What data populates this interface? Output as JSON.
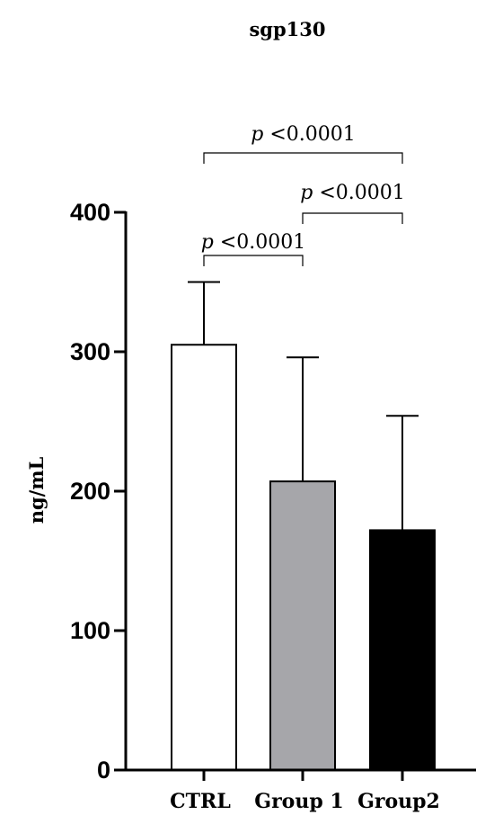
{
  "chart_data": {
    "type": "bar",
    "title": "sgp130",
    "xlabel": "",
    "ylabel": "ng/mL",
    "ylim": [
      0,
      400
    ],
    "yticks": [
      0,
      100,
      200,
      300,
      400
    ],
    "categories": [
      "CTRL",
      "Group 1",
      "Group2"
    ],
    "values": [
      305,
      207,
      172
    ],
    "error_upper": [
      350,
      296,
      254
    ],
    "colors": [
      "#ffffff",
      "#a6a6aa",
      "#000000"
    ],
    "comparisons": [
      {
        "from": 0,
        "to": 1,
        "p_symbol": "p",
        "p_text": " <0.0001"
      },
      {
        "from": 1,
        "to": 2,
        "p_symbol": "p",
        "p_text": " <0.0001"
      },
      {
        "from": 0,
        "to": 2,
        "p_symbol": "p",
        "p_text": " <0.0001"
      }
    ]
  }
}
